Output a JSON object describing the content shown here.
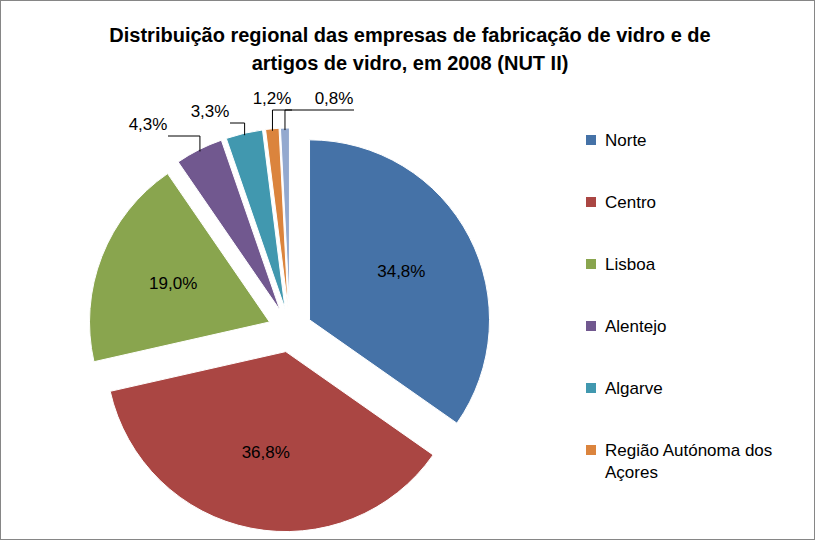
{
  "chart_data": {
    "type": "pie",
    "title": "Distribuição regional das empresas de fabricação de vidro e de artigos de vidro, em 2008 (NUT II)",
    "categories": [
      "Norte",
      "Centro",
      "Lisboa",
      "Alentejo",
      "Algarve",
      "Região Autónoma dos Açores",
      null
    ],
    "values": [
      34.8,
      36.8,
      19.0,
      4.3,
      3.3,
      1.2,
      0.8
    ],
    "value_labels": [
      "34,8%",
      "36,8%",
      "19,0%",
      "4,3%",
      "3,3%",
      "1,2%",
      "0,8%"
    ],
    "colors": [
      "#4572a7",
      "#aa4643",
      "#89a54e",
      "#71588f",
      "#4198af",
      "#db843d",
      "#93a9cf"
    ],
    "data_labels": true,
    "legend": "right"
  }
}
